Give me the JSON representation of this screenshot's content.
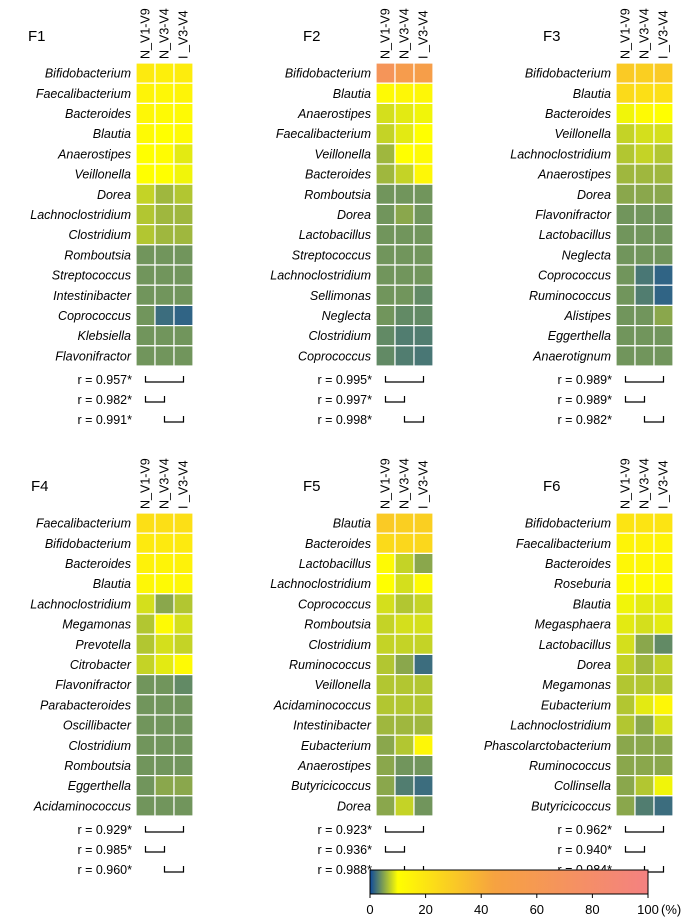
{
  "chart_data": {
    "type": "heatmap",
    "columns": [
      "N_V1-V9",
      "N_V3-V4",
      "I _V3-V4"
    ],
    "colorbar": {
      "range": [
        0,
        100
      ],
      "unit": "(%)",
      "ticks": [
        "0",
        "20",
        "40",
        "60",
        "80",
        "100"
      ],
      "stops": [
        "#0d4a9c",
        "#ffff00",
        "#f6a241",
        "#f48181"
      ]
    },
    "panels": [
      {
        "title": "F1",
        "rows": [
          "Bifidobacterium",
          "Faecalibacterium",
          "Bacteroides",
          "Blautia",
          "Anaerostipes",
          "Veillonella",
          "Dorea",
          "Lachnoclostridium",
          "Clostridium",
          "Romboutsia",
          "Streptococcus",
          "Intestinibacter",
          "Coprococcus",
          "Klebsiella",
          "Flavonifractor"
        ],
        "values": [
          [
            18,
            16,
            17
          ],
          [
            14,
            13,
            14
          ],
          [
            13,
            12,
            12
          ],
          [
            12,
            10,
            12
          ],
          [
            10,
            11,
            8
          ],
          [
            10,
            10,
            9
          ],
          [
            6,
            4,
            5
          ],
          [
            5,
            4,
            4
          ],
          [
            5,
            4,
            4
          ],
          [
            2,
            2,
            2
          ],
          [
            2,
            2,
            2
          ],
          [
            2,
            2,
            2
          ],
          [
            2,
            0.5,
            0.3
          ],
          [
            2,
            2,
            2
          ],
          [
            2,
            2,
            2
          ]
        ],
        "correlations": [
          "r = 0.957*",
          "r = 0.982*",
          "r = 0.991*"
        ]
      },
      {
        "title": "F2",
        "rows": [
          "Bifidobacterium",
          "Blautia",
          "Anaerostipes",
          "Faecalibacterium",
          "Veillonella",
          "Bacteroides",
          "Romboutsia",
          "Dorea",
          "Lactobacillus",
          "Streptococcus",
          "Lachnoclostridium",
          "Sellimonas",
          "Neglecta",
          "Clostridium",
          "Coprococcus"
        ],
        "values": [
          [
            66,
            55,
            52
          ],
          [
            12,
            13,
            13
          ],
          [
            7,
            8,
            9
          ],
          [
            6,
            8,
            10
          ],
          [
            4,
            10,
            12
          ],
          [
            4,
            6,
            13
          ],
          [
            2,
            2,
            2
          ],
          [
            2,
            3,
            2
          ],
          [
            2,
            2,
            2
          ],
          [
            2,
            2,
            2
          ],
          [
            2,
            2,
            2
          ],
          [
            2,
            2,
            1.5
          ],
          [
            2,
            1.5,
            1.5
          ],
          [
            1.5,
            1,
            1
          ],
          [
            1.5,
            1,
            0.8
          ]
        ],
        "correlations": [
          "r = 0.995*",
          "r = 0.997*",
          "r = 0.998*"
        ]
      },
      {
        "title": "F3",
        "rows": [
          "Bifidobacterium",
          "Blautia",
          "Bacteroides",
          "Veillonella",
          "Lachnoclostridium",
          "Anaerostipes",
          "Dorea",
          "Flavonifractor",
          "Lactobacillus",
          "Neglecta",
          "Coprococcus",
          "Ruminococcus",
          "Alistipes",
          "Eggerthella",
          "Anaerotignum"
        ],
        "values": [
          [
            30,
            28,
            30
          ],
          [
            24,
            22,
            22
          ],
          [
            9,
            12,
            10
          ],
          [
            6,
            7,
            7
          ],
          [
            5,
            6,
            5
          ],
          [
            4,
            4,
            4
          ],
          [
            3,
            3,
            3
          ],
          [
            2,
            2,
            2
          ],
          [
            2,
            2,
            2
          ],
          [
            2,
            2,
            2
          ],
          [
            2,
            0.8,
            0.3
          ],
          [
            2,
            1,
            0.3
          ],
          [
            2,
            2,
            3
          ],
          [
            2,
            2,
            2
          ],
          [
            2,
            2,
            2
          ]
        ],
        "correlations": [
          "r = 0.989*",
          "r = 0.989*",
          "r = 0.982*"
        ]
      },
      {
        "title": "F4",
        "rows": [
          "Faecalibacterium",
          "Bifidobacterium",
          "Bacteroides",
          "Blautia",
          "Lachnoclostridium",
          "Megamonas",
          "Prevotella",
          "Citrobacter",
          "Flavonifractor",
          "Parabacteroides",
          "Oscillibacter",
          "Clostridium",
          "Romboutsia",
          "Eggerthella",
          "Acidaminococcus"
        ],
        "values": [
          [
            22,
            22,
            22
          ],
          [
            18,
            18,
            18
          ],
          [
            15,
            14,
            15
          ],
          [
            13,
            12,
            13
          ],
          [
            7,
            3,
            5
          ],
          [
            5,
            12,
            7
          ],
          [
            5,
            7,
            6
          ],
          [
            6,
            8,
            12
          ],
          [
            2,
            2,
            1.5
          ],
          [
            2,
            2,
            2
          ],
          [
            2,
            2,
            2
          ],
          [
            2,
            2,
            2
          ],
          [
            2,
            2,
            2
          ],
          [
            2,
            3,
            3
          ],
          [
            2,
            2,
            2
          ]
        ],
        "correlations": [
          "r = 0.929*",
          "r = 0.985*",
          "r = 0.960*"
        ]
      },
      {
        "title": "F5",
        "rows": [
          "Blautia",
          "Bacteroides",
          "Lactobacillus",
          "Lachnoclostridium",
          "Coprococcus",
          "Romboutsia",
          "Clostridium",
          "Ruminococcus",
          "Veillonella",
          "Acidaminococcus",
          "Intestinibacter",
          "Eubacterium",
          "Anaerostipes",
          "Butyricicoccus",
          "Dorea"
        ],
        "values": [
          [
            30,
            28,
            28
          ],
          [
            24,
            25,
            25
          ],
          [
            12,
            6,
            3
          ],
          [
            10,
            7,
            12
          ],
          [
            7,
            5,
            6
          ],
          [
            6,
            7,
            7
          ],
          [
            6,
            6,
            6
          ],
          [
            5,
            3,
            0.5
          ],
          [
            5,
            5,
            5
          ],
          [
            5,
            5,
            5
          ],
          [
            4,
            4,
            4
          ],
          [
            3,
            5,
            13
          ],
          [
            3,
            2,
            2
          ],
          [
            3,
            1,
            0.5
          ],
          [
            3,
            6,
            2
          ]
        ],
        "correlations": [
          "r = 0.923*",
          "r = 0.936*",
          "r = 0.988*"
        ]
      },
      {
        "title": "F6",
        "rows": [
          "Bifidobacterium",
          "Faecalibacterium",
          "Bacteroides",
          "Roseburia",
          "Blautia",
          "Megasphaera",
          "Lactobacillus",
          "Dorea",
          "Megamonas",
          "Eubacterium",
          "Lachnoclostridium",
          "Phascolarctobacterium",
          "Ruminococcus",
          "Collinsella",
          "Butyricicoccus"
        ],
        "values": [
          [
            20,
            20,
            20
          ],
          [
            14,
            15,
            14
          ],
          [
            13,
            13,
            13
          ],
          [
            12,
            12,
            12
          ],
          [
            9,
            8,
            8
          ],
          [
            8,
            7,
            8
          ],
          [
            7,
            3,
            1.5
          ],
          [
            6,
            4,
            6
          ],
          [
            5,
            5,
            5
          ],
          [
            5,
            8,
            13
          ],
          [
            5,
            3,
            7
          ],
          [
            3,
            3,
            3
          ],
          [
            3,
            3,
            3
          ],
          [
            3,
            5,
            9
          ],
          [
            3,
            1,
            0.5
          ]
        ],
        "correlations": [
          "r = 0.962*",
          "r = 0.940*",
          "r = 0.984*"
        ]
      }
    ]
  }
}
